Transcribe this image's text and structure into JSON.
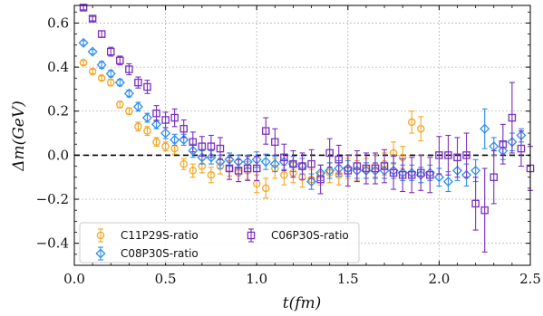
{
  "chart_data": {
    "type": "scatter",
    "xlabel": "t(fm)",
    "ylabel": "Δm(GeV)",
    "xlim": [
      0.0,
      2.5
    ],
    "ylim": [
      -0.5,
      0.68
    ],
    "xticks": [
      "0.0",
      "0.5",
      "1.0",
      "1.5",
      "2.0",
      "2.5"
    ],
    "yticks": [
      "0.6",
      "0.4",
      "0.2",
      "0.0",
      "−0.2",
      "−0.4"
    ],
    "grid": true,
    "reference_line": {
      "y": 0.0,
      "style": "dashed"
    },
    "legend": {
      "placement": "lower-left",
      "columns": 2
    },
    "series": [
      {
        "name": "C11P29S-ratio",
        "color": "#f5a623",
        "marker": "circle",
        "x": [
          0.05,
          0.1,
          0.15,
          0.2,
          0.25,
          0.3,
          0.35,
          0.4,
          0.45,
          0.5,
          0.55,
          0.6,
          0.65,
          0.7,
          0.75,
          0.8,
          0.85,
          0.9,
          0.95,
          1.0,
          1.05,
          1.1,
          1.15,
          1.2,
          1.25,
          1.3,
          1.35,
          1.4,
          1.45,
          1.5,
          1.55,
          1.6,
          1.65,
          1.7,
          1.75,
          1.8,
          1.85,
          1.9
        ],
        "y": [
          0.42,
          0.38,
          0.35,
          0.33,
          0.23,
          0.2,
          0.13,
          0.11,
          0.06,
          0.04,
          0.03,
          -0.04,
          -0.07,
          -0.05,
          -0.09,
          -0.05,
          -0.06,
          -0.08,
          -0.07,
          -0.13,
          -0.15,
          -0.06,
          -0.09,
          -0.08,
          -0.1,
          -0.11,
          -0.09,
          -0.08,
          -0.09,
          -0.06,
          -0.07,
          -0.06,
          -0.05,
          -0.04,
          0.01,
          -0.01,
          0.15,
          0.12
        ],
        "err": [
          0.01,
          0.01,
          0.01,
          0.015,
          0.015,
          0.015,
          0.02,
          0.02,
          0.02,
          0.02,
          0.025,
          0.025,
          0.03,
          0.03,
          0.035,
          0.035,
          0.035,
          0.04,
          0.04,
          0.04,
          0.045,
          0.045,
          0.045,
          0.045,
          0.045,
          0.045,
          0.045,
          0.045,
          0.045,
          0.045,
          0.045,
          0.045,
          0.05,
          0.05,
          0.05,
          0.05,
          0.05,
          0.055
        ]
      },
      {
        "name": "C08P30S-ratio",
        "color": "#2e8ef0",
        "marker": "diamond",
        "x": [
          0.05,
          0.1,
          0.15,
          0.2,
          0.25,
          0.3,
          0.35,
          0.4,
          0.45,
          0.5,
          0.55,
          0.6,
          0.65,
          0.7,
          0.75,
          0.8,
          0.85,
          0.9,
          0.95,
          1.0,
          1.05,
          1.1,
          1.15,
          1.2,
          1.25,
          1.3,
          1.35,
          1.4,
          1.45,
          1.5,
          1.55,
          1.6,
          1.65,
          1.7,
          1.75,
          1.8,
          1.85,
          1.9,
          1.95,
          2.0,
          2.05,
          2.1,
          2.15,
          2.2,
          2.25,
          2.3,
          2.35,
          2.4,
          2.45
        ],
        "y": [
          0.51,
          0.47,
          0.41,
          0.37,
          0.33,
          0.28,
          0.22,
          0.17,
          0.14,
          0.1,
          0.07,
          0.07,
          0.02,
          -0.01,
          -0.01,
          -0.03,
          -0.02,
          -0.03,
          -0.03,
          -0.02,
          -0.03,
          -0.04,
          -0.03,
          -0.04,
          -0.05,
          -0.12,
          -0.08,
          -0.07,
          -0.06,
          -0.06,
          -0.07,
          -0.07,
          -0.07,
          -0.07,
          -0.07,
          -0.08,
          -0.08,
          -0.09,
          -0.08,
          -0.1,
          -0.12,
          -0.07,
          -0.09,
          -0.07,
          0.12,
          0.04,
          0.02,
          0.06,
          0.09
        ],
        "err": [
          0.01,
          0.01,
          0.015,
          0.015,
          0.015,
          0.015,
          0.02,
          0.02,
          0.02,
          0.025,
          0.025,
          0.025,
          0.03,
          0.03,
          0.03,
          0.03,
          0.03,
          0.03,
          0.03,
          0.035,
          0.035,
          0.035,
          0.035,
          0.035,
          0.035,
          0.035,
          0.035,
          0.035,
          0.035,
          0.035,
          0.035,
          0.035,
          0.035,
          0.035,
          0.035,
          0.035,
          0.035,
          0.035,
          0.035,
          0.04,
          0.045,
          0.045,
          0.05,
          0.05,
          0.09,
          0.04,
          0.04,
          0.04,
          0.03
        ]
      },
      {
        "name": "C06P30S-ratio",
        "color": "#7b2fbe",
        "marker": "square",
        "x": [
          0.05,
          0.1,
          0.15,
          0.2,
          0.25,
          0.3,
          0.35,
          0.4,
          0.45,
          0.5,
          0.55,
          0.6,
          0.65,
          0.7,
          0.75,
          0.8,
          0.85,
          0.9,
          0.95,
          1.0,
          1.05,
          1.1,
          1.15,
          1.2,
          1.25,
          1.3,
          1.35,
          1.4,
          1.45,
          1.5,
          1.55,
          1.6,
          1.65,
          1.7,
          1.75,
          1.8,
          1.85,
          1.9,
          1.95,
          2.0,
          2.05,
          2.1,
          2.15,
          2.2,
          2.25,
          2.3,
          2.35,
          2.4,
          2.45,
          2.5
        ],
        "y": [
          0.67,
          0.62,
          0.55,
          0.47,
          0.43,
          0.39,
          0.33,
          0.31,
          0.19,
          0.16,
          0.17,
          0.12,
          0.06,
          0.04,
          0.04,
          0.03,
          -0.06,
          -0.07,
          -0.06,
          -0.06,
          0.11,
          0.06,
          -0.01,
          -0.04,
          -0.05,
          -0.04,
          -0.11,
          0.01,
          -0.02,
          -0.07,
          -0.05,
          -0.06,
          -0.06,
          -0.05,
          -0.08,
          -0.09,
          -0.09,
          -0.08,
          -0.09,
          0.0,
          0.0,
          -0.01,
          0.0,
          -0.22,
          -0.25,
          -0.1,
          0.05,
          0.17,
          0.03,
          -0.06
        ],
        "err": [
          0.01,
          0.01,
          0.015,
          0.02,
          0.02,
          0.025,
          0.025,
          0.03,
          0.035,
          0.035,
          0.04,
          0.04,
          0.045,
          0.045,
          0.05,
          0.05,
          0.05,
          0.05,
          0.055,
          0.055,
          0.06,
          0.06,
          0.06,
          0.06,
          0.06,
          0.065,
          0.065,
          0.065,
          0.065,
          0.07,
          0.07,
          0.07,
          0.07,
          0.075,
          0.075,
          0.075,
          0.08,
          0.08,
          0.08,
          0.085,
          0.09,
          0.09,
          0.1,
          0.12,
          0.19,
          0.12,
          0.09,
          0.16,
          0.08,
          0.1
        ]
      }
    ]
  }
}
